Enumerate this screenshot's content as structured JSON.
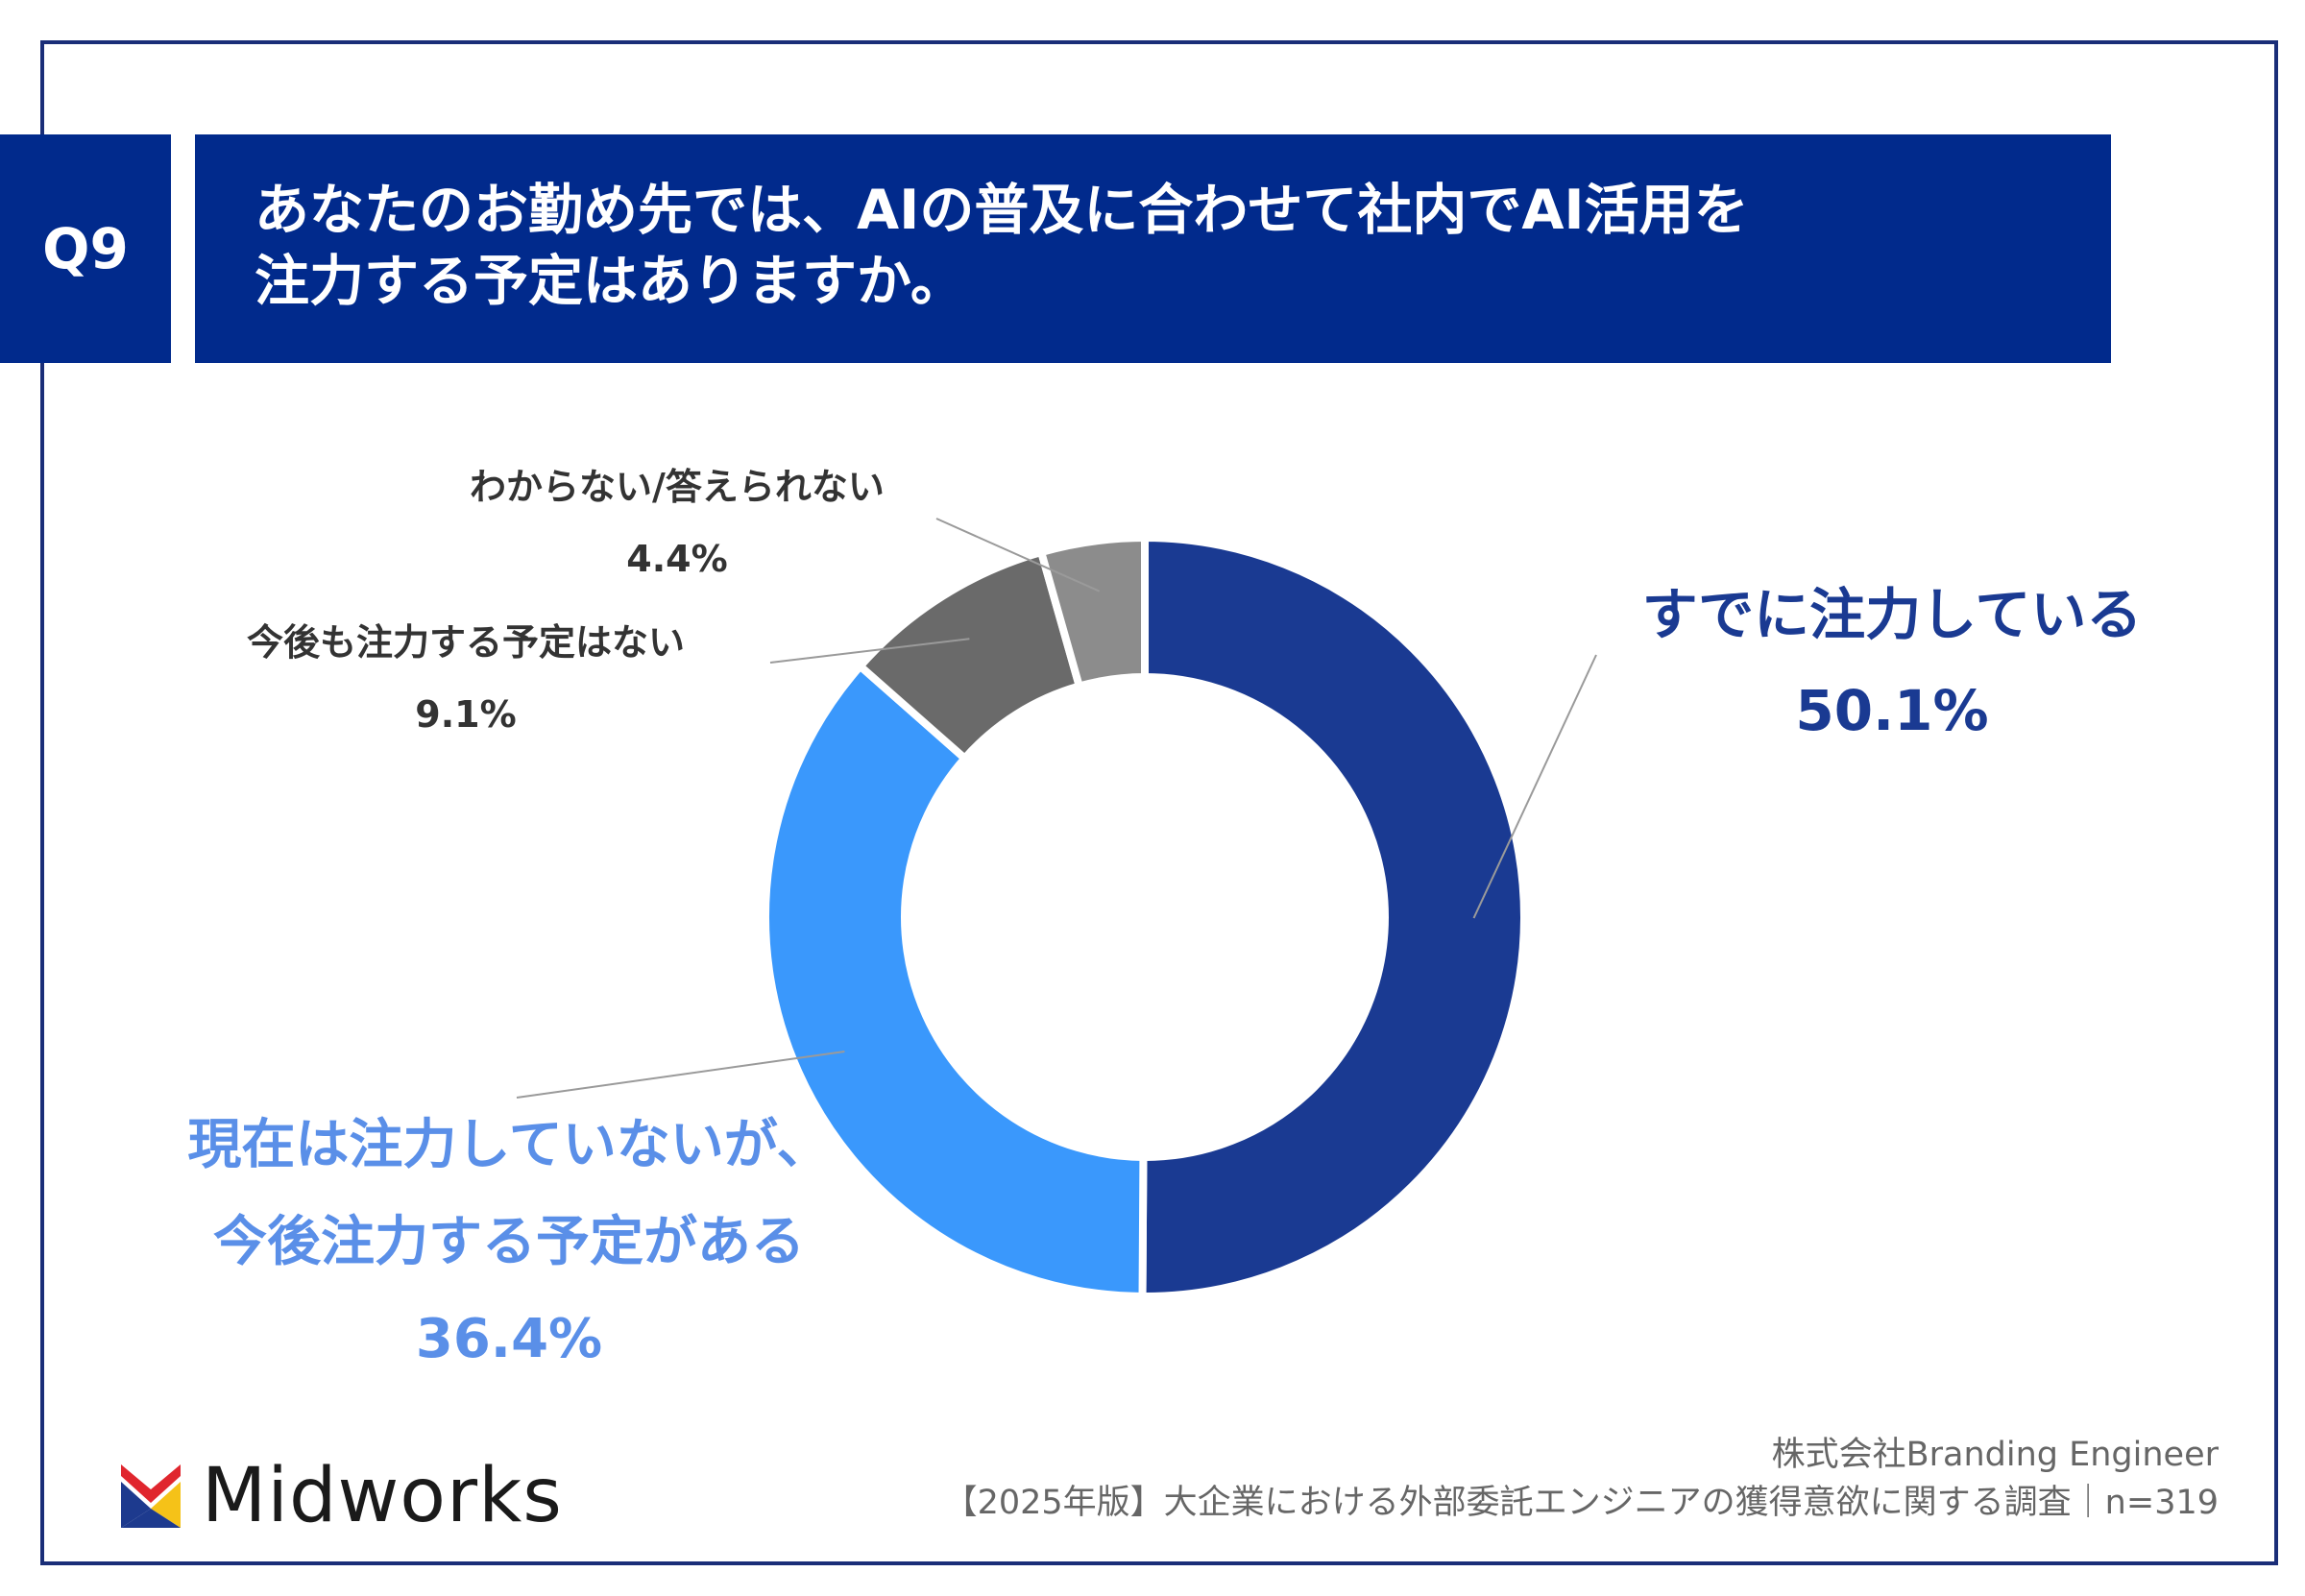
{
  "header": {
    "q_label": "Q9",
    "title_line1": "あなたのお勤め先では、AIの普及に合わせて社内でAI活用を",
    "title_line2": "注力する予定はありますか。"
  },
  "chart_data": {
    "type": "pie",
    "donut": true,
    "slices": [
      {
        "label": "すでに注力している",
        "value": 50.1,
        "value_label": "50.1%",
        "color": "#1a3a92"
      },
      {
        "label_lines": [
          "現在は注力していないが、",
          "今後注力する予定がある"
        ],
        "value": 36.4,
        "value_label": "36.4%",
        "color": "#3a98fc"
      },
      {
        "label": "今後も注力する予定はない",
        "value": 9.1,
        "value_label": "9.1%",
        "color": "#6a6a6a"
      },
      {
        "label": "わからない/答えられない",
        "value": 4.4,
        "value_label": "4.4%",
        "color": "#8c8c8c"
      }
    ]
  },
  "footer": {
    "company": "株式会社Branding Engineer",
    "survey": "【2025年版】大企業における外部委託エンジニアの獲得意欲に関する調査｜n=319",
    "logo_text": "Midworks"
  }
}
